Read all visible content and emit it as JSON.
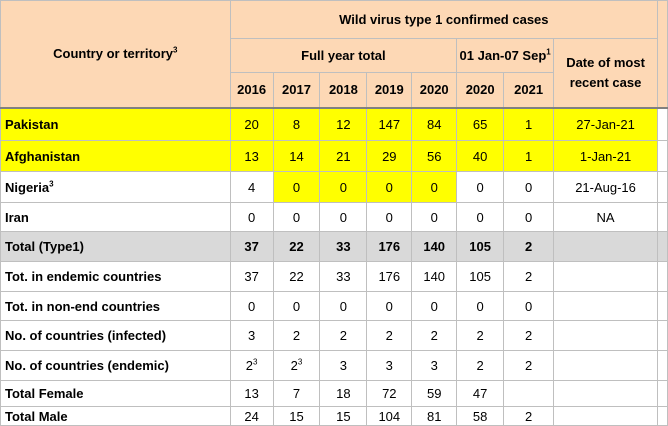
{
  "header": {
    "country_label": "Country or territory",
    "country_sup": "3",
    "group_title": "Wild virus type 1 confirmed cases",
    "full_year_label": "Full year total",
    "ytd_label": "01 Jan-07 Sep",
    "ytd_sup": "1",
    "recent_label_1": "Date of most",
    "recent_label_2": "recent case",
    "years": [
      "2016",
      "2017",
      "2018",
      "2019",
      "2020",
      "2020",
      "2021"
    ]
  },
  "rows": [
    {
      "label": "Pakistan",
      "sup": "",
      "values": [
        "20",
        "8",
        "12",
        "147",
        "84",
        "65",
        "1"
      ],
      "sups": [
        "",
        "",
        "",
        "",
        "",
        "",
        ""
      ],
      "date": "27-Jan-21",
      "style": "yellow-all"
    },
    {
      "label": "Afghanistan",
      "sup": "",
      "values": [
        "13",
        "14",
        "21",
        "29",
        "56",
        "40",
        "1"
      ],
      "sups": [
        "",
        "",
        "",
        "",
        "",
        "",
        ""
      ],
      "date": "1-Jan-21",
      "style": "yellow-all"
    },
    {
      "label": "Nigeria",
      "sup": "3",
      "values": [
        "4",
        "0",
        "0",
        "0",
        "0",
        "0",
        "0"
      ],
      "sups": [
        "",
        "",
        "",
        "",
        "",
        "",
        ""
      ],
      "date": "21-Aug-16",
      "style": "yellow-partial"
    },
    {
      "label": "Iran",
      "sup": "",
      "values": [
        "0",
        "0",
        "0",
        "0",
        "0",
        "0",
        "0"
      ],
      "sups": [
        "",
        "",
        "",
        "",
        "",
        "",
        ""
      ],
      "date": "NA",
      "style": ""
    },
    {
      "label": "Total (Type1)",
      "sup": "",
      "values": [
        "37",
        "22",
        "33",
        "176",
        "140",
        "105",
        "2"
      ],
      "sups": [
        "",
        "",
        "",
        "",
        "",
        "",
        ""
      ],
      "date": "",
      "style": "grey"
    },
    {
      "label": "Tot. in endemic countries",
      "sup": "",
      "values": [
        "37",
        "22",
        "33",
        "176",
        "140",
        "105",
        "2"
      ],
      "sups": [
        "",
        "",
        "",
        "",
        "",
        "",
        ""
      ],
      "date": "",
      "style": ""
    },
    {
      "label": "Tot. in non-end countries",
      "sup": "",
      "values": [
        "0",
        "0",
        "0",
        "0",
        "0",
        "0",
        "0"
      ],
      "sups": [
        "",
        "",
        "",
        "",
        "",
        "",
        ""
      ],
      "date": "",
      "style": ""
    },
    {
      "label": "No. of countries (infected)",
      "sup": "",
      "values": [
        "3",
        "2",
        "2",
        "2",
        "2",
        "2",
        "2"
      ],
      "sups": [
        "",
        "",
        "",
        "",
        "",
        "",
        ""
      ],
      "date": "",
      "style": ""
    },
    {
      "label": "No. of countries (endemic)",
      "sup": "",
      "values": [
        "2",
        "2",
        "3",
        "3",
        "3",
        "2",
        "2"
      ],
      "sups": [
        "3",
        "3",
        "",
        "",
        "",
        "",
        ""
      ],
      "date": "",
      "style": ""
    },
    {
      "label": "Total Female",
      "sup": "",
      "values": [
        "13",
        "7",
        "18",
        "72",
        "59",
        "47",
        ""
      ],
      "sups": [
        "",
        "",
        "",
        "",
        "",
        "",
        ""
      ],
      "date": "",
      "style": ""
    },
    {
      "label": "Total Male",
      "sup": "",
      "values": [
        "24",
        "15",
        "15",
        "104",
        "81",
        "58",
        "2"
      ],
      "sups": [
        "",
        "",
        "",
        "",
        "",
        "",
        ""
      ],
      "date": "",
      "style": ""
    }
  ],
  "colors": {
    "header_bg": "#fdd8b5",
    "highlight": "#ffff00",
    "total_bg": "#d9d9d9"
  }
}
